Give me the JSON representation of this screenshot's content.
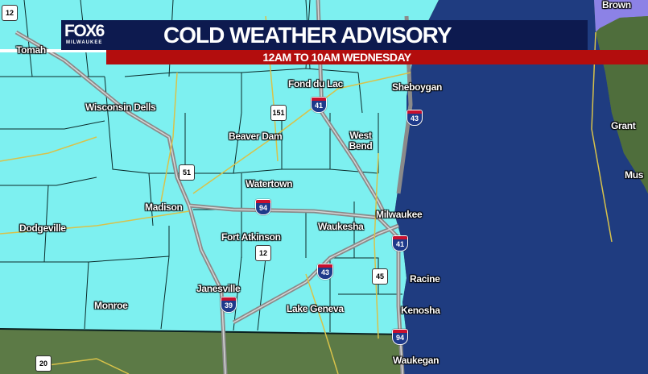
{
  "banner": {
    "logo": "FOX6",
    "logo_sub": "MILWAUKEE",
    "title": "COLD WEATHER ADVISORY",
    "subtitle": "12AM TO 10AM WEDNESDAY"
  },
  "colors": {
    "advisory": "#7df0f0",
    "lake": "#1f3c80",
    "land": "#5c7a46",
    "neighbor_alert": "#8c82e6",
    "banner": "#0d1a4f",
    "subbar": "#b30d0d"
  },
  "cities": [
    {
      "name": "Tomah"
    },
    {
      "name": "Brown"
    },
    {
      "name": "Fond du Lac"
    },
    {
      "name": "Sheboygan"
    },
    {
      "name": "Wisconsin Dells"
    },
    {
      "name": "Beaver Dam"
    },
    {
      "name": "West Bend"
    },
    {
      "name": "Grant"
    },
    {
      "name": "Mus"
    },
    {
      "name": "Watertown"
    },
    {
      "name": "Madison"
    },
    {
      "name": "Milwaukee"
    },
    {
      "name": "Dodgeville"
    },
    {
      "name": "Waukesha"
    },
    {
      "name": "Fort Atkinson"
    },
    {
      "name": "Racine"
    },
    {
      "name": "Janesville"
    },
    {
      "name": "Monroe"
    },
    {
      "name": "Lake Geneva"
    },
    {
      "name": "Kenosha"
    },
    {
      "name": "Waukegan"
    }
  ],
  "shields": {
    "interstate": [
      "41",
      "43",
      "94",
      "41",
      "43",
      "39",
      "94"
    ],
    "us": [
      "151",
      "51",
      "12",
      "45",
      "20",
      "12"
    ]
  }
}
